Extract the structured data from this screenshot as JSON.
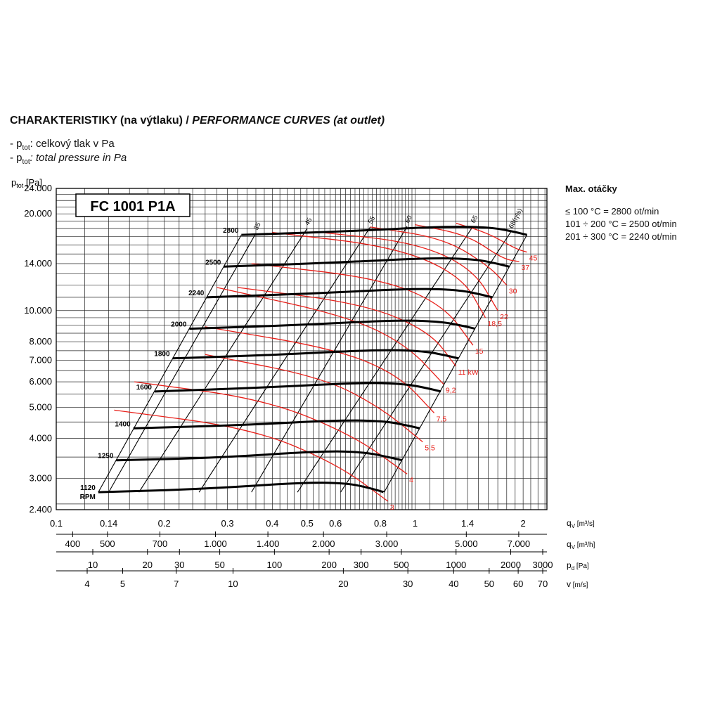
{
  "header": {
    "title_bold": "CHARAKTERISTIKY (na výtlaku) / ",
    "title_italic": "PERFORMANCE CURVES (at outlet)",
    "legend_cz_pre": "- p",
    "legend_cz_sub": "tot",
    "legend_cz_post": ": celkový tlak v Pa",
    "legend_en_pre": "- p",
    "legend_en_sub": "tot",
    "legend_en_post": ": total pressure in Pa"
  },
  "max_speed": {
    "heading": "Max. otáčky",
    "lines": [
      "≤ 100 °C = 2800 ot/min",
      "101 ÷ 200 °C = 2500 ot/min",
      "201 ÷ 300 °C = 2240 ot/min"
    ]
  },
  "chart_data": {
    "type": "line",
    "model_label": "FC 1001 P1A",
    "y_axis": {
      "label_pre": "p",
      "label_sub": "tot",
      "label_post": " [Pa]",
      "scale": "log",
      "range": [
        2400,
        24000
      ],
      "ticks": [
        {
          "v": 24000,
          "t": "24.000"
        },
        {
          "v": 20000,
          "t": "20.000"
        },
        {
          "v": 14000,
          "t": "14.000"
        },
        {
          "v": 10000,
          "t": "10.000"
        },
        {
          "v": 8000,
          "t": "8.000"
        },
        {
          "v": 7000,
          "t": "7.000"
        },
        {
          "v": 6000,
          "t": "6.000"
        },
        {
          "v": 5000,
          "t": "5.000"
        },
        {
          "v": 4000,
          "t": "4.000"
        },
        {
          "v": 3000,
          "t": "3.000"
        },
        {
          "v": 2400,
          "t": "2.400"
        }
      ]
    },
    "x_axis": {
      "scale": "log",
      "range": [
        0.1,
        2.33
      ],
      "label": "q",
      "label_sub": "V",
      "label_unit": "[m³/s]",
      "ticks": [
        {
          "v": 0.1,
          "t": "0.1"
        },
        {
          "v": 0.14,
          "t": "0.14"
        },
        {
          "v": 0.2,
          "t": "0.2"
        },
        {
          "v": 0.3,
          "t": "0.3"
        },
        {
          "v": 0.4,
          "t": "0.4"
        },
        {
          "v": 0.5,
          "t": "0.5"
        },
        {
          "v": 0.6,
          "t": "0.6"
        },
        {
          "v": 0.8,
          "t": "0.8"
        },
        {
          "v": 1,
          "t": "1"
        },
        {
          "v": 1.4,
          "t": "1.4"
        },
        {
          "v": 2,
          "t": "2"
        }
      ]
    },
    "secondary_axes": [
      {
        "label": "q",
        "label_sub": "V",
        "label_unit": "[m³/h]",
        "ticks": [
          {
            "v": 400,
            "t": "400"
          },
          {
            "v": 500,
            "t": "500"
          },
          {
            "v": 700,
            "t": "700"
          },
          {
            "v": 1000,
            "t": "1.000"
          },
          {
            "v": 1400,
            "t": "1.400"
          },
          {
            "v": 2000,
            "t": "2.000"
          },
          {
            "v": 3000,
            "t": "3.000"
          },
          {
            "v": 5000,
            "t": "5.000"
          },
          {
            "v": 7000,
            "t": "7.000"
          }
        ]
      },
      {
        "label": "p",
        "label_sub": "d",
        "label_unit": "[Pa]",
        "ticks": [
          {
            "v": 10,
            "t": "10"
          },
          {
            "v": 20,
            "t": "20"
          },
          {
            "v": 30,
            "t": "30"
          },
          {
            "v": 50,
            "t": "50"
          },
          {
            "v": 100,
            "t": "100"
          },
          {
            "v": 200,
            "t": "200"
          },
          {
            "v": 300,
            "t": "300"
          },
          {
            "v": 500,
            "t": "500"
          },
          {
            "v": 1000,
            "t": "1000"
          },
          {
            "v": 2000,
            "t": "2000"
          },
          {
            "v": 3000,
            "t": "3000"
          }
        ]
      },
      {
        "label": "v",
        "label_sub": "",
        "label_unit": "[m/s]",
        "ticks": [
          {
            "v": 4,
            "t": "4"
          },
          {
            "v": 5,
            "t": "5"
          },
          {
            "v": 7,
            "t": "7"
          },
          {
            "v": 10,
            "t": "10"
          },
          {
            "v": 20,
            "t": "20"
          },
          {
            "v": 30,
            "t": "30"
          },
          {
            "v": 40,
            "t": "40"
          },
          {
            "v": 50,
            "t": "50"
          },
          {
            "v": 60,
            "t": "60"
          },
          {
            "v": 70,
            "t": "70"
          }
        ]
      }
    ],
    "rpm_unit": "RPM",
    "speed_curves": [
      {
        "rpm": "1120",
        "points": [
          [
            0.131,
            2720
          ],
          [
            0.25,
            2780
          ],
          [
            0.5,
            2920
          ],
          [
            0.65,
            2900
          ],
          [
            0.75,
            2800
          ],
          [
            0.82,
            2720
          ]
        ]
      },
      {
        "rpm": "1250",
        "points": [
          [
            0.147,
            3420
          ],
          [
            0.28,
            3480
          ],
          [
            0.56,
            3660
          ],
          [
            0.73,
            3620
          ],
          [
            0.85,
            3490
          ],
          [
            0.92,
            3420
          ]
        ]
      },
      {
        "rpm": "1400",
        "points": [
          [
            0.164,
            4300
          ],
          [
            0.33,
            4400
          ],
          [
            0.62,
            4560
          ],
          [
            0.82,
            4530
          ],
          [
            0.95,
            4390
          ],
          [
            1.03,
            4300
          ]
        ]
      },
      {
        "rpm": "1600",
        "points": [
          [
            0.188,
            5600
          ],
          [
            0.37,
            5750
          ],
          [
            0.71,
            5970
          ],
          [
            0.94,
            5910
          ],
          [
            1.09,
            5720
          ],
          [
            1.18,
            5600
          ]
        ]
      },
      {
        "rpm": "1800",
        "points": [
          [
            0.211,
            7100
          ],
          [
            0.41,
            7280
          ],
          [
            0.8,
            7560
          ],
          [
            1.06,
            7480
          ],
          [
            1.22,
            7250
          ],
          [
            1.32,
            7100
          ]
        ]
      },
      {
        "rpm": "2000",
        "points": [
          [
            0.235,
            8780
          ],
          [
            0.46,
            9000
          ],
          [
            0.89,
            9340
          ],
          [
            1.18,
            9240
          ],
          [
            1.36,
            8960
          ],
          [
            1.47,
            8780
          ]
        ]
      },
      {
        "rpm": "2240",
        "points": [
          [
            0.263,
            11000
          ],
          [
            0.51,
            11290
          ],
          [
            0.99,
            11710
          ],
          [
            1.32,
            11600
          ],
          [
            1.52,
            11230
          ],
          [
            1.64,
            11000
          ]
        ]
      },
      {
        "rpm": "2500",
        "points": [
          [
            0.293,
            13700
          ],
          [
            0.57,
            14060
          ],
          [
            1.11,
            14590
          ],
          [
            1.47,
            14450
          ],
          [
            1.69,
            14000
          ],
          [
            1.83,
            13700
          ]
        ]
      },
      {
        "rpm": "2800",
        "points": [
          [
            0.328,
            17200
          ],
          [
            0.64,
            17640
          ],
          [
            1.24,
            18300
          ],
          [
            1.65,
            18120
          ],
          [
            1.9,
            17560
          ],
          [
            2.05,
            17200
          ]
        ]
      }
    ],
    "power_curves": [
      {
        "label": "3",
        "points": [
          [
            0.145,
            4900
          ],
          [
            0.35,
            4300
          ],
          [
            0.6,
            3350
          ],
          [
            0.84,
            2550
          ]
        ]
      },
      {
        "label": "4",
        "points": [
          [
            0.165,
            6000
          ],
          [
            0.38,
            5300
          ],
          [
            0.67,
            4100
          ],
          [
            0.95,
            3100
          ]
        ]
      },
      {
        "label": "5,5",
        "points": [
          [
            0.26,
            7300
          ],
          [
            0.55,
            6200
          ],
          [
            0.8,
            5000
          ],
          [
            1.05,
            3900
          ]
        ]
      },
      {
        "label": "7,5",
        "points": [
          [
            0.26,
            8900
          ],
          [
            0.6,
            7600
          ],
          [
            0.9,
            6300
          ],
          [
            1.13,
            4800
          ]
        ]
      },
      {
        "label": "9,2",
        "points": [
          [
            0.28,
            11800
          ],
          [
            0.65,
            9600
          ],
          [
            0.95,
            7800
          ],
          [
            1.2,
            5900
          ]
        ]
      },
      {
        "label": "11 kW",
        "points": [
          [
            0.32,
            11800
          ],
          [
            0.72,
            10500
          ],
          [
            1.1,
            8600
          ],
          [
            1.3,
            6700
          ]
        ]
      },
      {
        "label": "15",
        "points": [
          [
            0.35,
            14000
          ],
          [
            0.8,
            12600
          ],
          [
            1.2,
            10400
          ],
          [
            1.45,
            7800
          ]
        ]
      },
      {
        "label": "18,5",
        "points": [
          [
            0.4,
            17500
          ],
          [
            0.88,
            15800
          ],
          [
            1.35,
            12800
          ],
          [
            1.57,
            9500
          ]
        ]
      },
      {
        "label": "22",
        "points": [
          [
            0.55,
            17500
          ],
          [
            1.0,
            16300
          ],
          [
            1.45,
            13500
          ],
          [
            1.7,
            10000
          ]
        ]
      },
      {
        "label": "30",
        "points": [
          [
            0.75,
            18200
          ],
          [
            1.2,
            16800
          ],
          [
            1.6,
            13800
          ],
          [
            1.8,
            12000
          ]
        ]
      },
      {
        "label": "37",
        "points": [
          [
            1.0,
            18500
          ],
          [
            1.4,
            17200
          ],
          [
            1.75,
            14500
          ],
          [
            1.95,
            14200
          ]
        ]
      },
      {
        "label": "45",
        "points": [
          [
            1.3,
            18700
          ],
          [
            1.6,
            17400
          ],
          [
            1.9,
            15600
          ],
          [
            2.05,
            15200
          ]
        ]
      }
    ],
    "efficiency_lines": [
      {
        "label": "35",
        "points": [
          [
            0.14,
            2720
          ],
          [
            0.36,
            17400
          ]
        ]
      },
      {
        "label": "45",
        "points": [
          [
            0.17,
            2720
          ],
          [
            0.5,
            18000
          ]
        ]
      },
      {
        "label": "55",
        "points": [
          [
            0.25,
            2720
          ],
          [
            0.75,
            18200
          ]
        ]
      },
      {
        "label": "60",
        "points": [
          [
            0.35,
            2720
          ],
          [
            0.95,
            18300
          ]
        ]
      },
      {
        "label": "65",
        "points": [
          [
            0.47,
            2720
          ],
          [
            1.45,
            18300
          ]
        ]
      },
      {
        "label": "68(η%)",
        "points": [
          [
            0.62,
            2720
          ],
          [
            1.85,
            17600
          ]
        ]
      }
    ],
    "grid": true
  }
}
